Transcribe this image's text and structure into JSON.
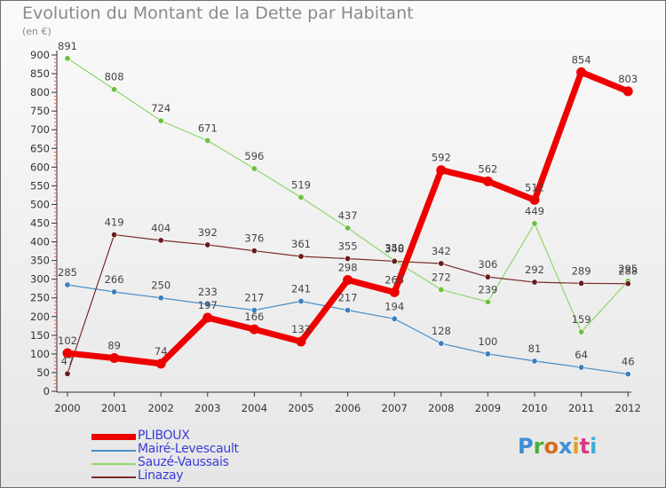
{
  "header": {
    "title": "Evolution du Montant de la Dette par Habitant",
    "unit": "(en €)"
  },
  "logo": {
    "text": "Proxiti",
    "colors": [
      "#3b8fd6",
      "#4caf3a",
      "#d86a1e",
      "#3b8fd6",
      "#e0a020",
      "#d83a7a",
      "#3bb0d6"
    ]
  },
  "chart_data": {
    "type": "line",
    "title": "Evolution du Montant de la Dette par Habitant",
    "ylabel": "(en €)",
    "xlabel": "",
    "ylim": [
      0,
      900
    ],
    "yticks": [
      0,
      50,
      100,
      150,
      200,
      250,
      300,
      350,
      400,
      450,
      500,
      550,
      600,
      650,
      700,
      750,
      800,
      850,
      900
    ],
    "categories": [
      "2000",
      "2001",
      "2002",
      "2003",
      "2004",
      "2005",
      "2006",
      "2007",
      "2008",
      "2009",
      "2010",
      "2011",
      "2012"
    ],
    "series": [
      {
        "name": "Mairé-Levescault",
        "color": "#4a8fc8",
        "marker": "#3a7fc0",
        "width": 1.2,
        "values": [
          285,
          266,
          250,
          233,
          217,
          241,
          217,
          194,
          128,
          100,
          81,
          64,
          46
        ]
      },
      {
        "name": "Sauzé-Vaussais",
        "color": "#8fd66a",
        "marker": "#6cc040",
        "width": 1.2,
        "values": [
          891,
          808,
          724,
          671,
          596,
          519,
          437,
          350,
          272,
          239,
          449,
          159,
          295
        ]
      },
      {
        "name": "Linazay",
        "color": "#7a2a2a",
        "marker": "#6a1a1a",
        "width": 1.2,
        "values": [
          47,
          419,
          404,
          392,
          376,
          361,
          355,
          348,
          342,
          306,
          292,
          289,
          288
        ]
      },
      {
        "name": "PLIBOUX",
        "color": "#ee0000",
        "marker": "#ee0000",
        "width": 7,
        "values": [
          102,
          89,
          74,
          197,
          166,
          133,
          298,
          265,
          592,
          562,
          512,
          854,
          803
        ]
      }
    ],
    "data_labels": [
      {
        "series": "PLIBOUX",
        "year": "2000",
        "text": "102"
      },
      {
        "series": "PLIBOUX",
        "year": "2001",
        "text": "89"
      },
      {
        "series": "PLIBOUX",
        "year": "2002",
        "text": "74"
      },
      {
        "series": "PLIBOUX",
        "year": "2003",
        "text": "197"
      },
      {
        "series": "PLIBOUX",
        "year": "2004",
        "text": "166"
      },
      {
        "series": "PLIBOUX",
        "year": "2005",
        "text": "133"
      },
      {
        "series": "PLIBOUX",
        "year": "2006",
        "text": "298"
      },
      {
        "series": "PLIBOUX",
        "year": "2007",
        "text": "265"
      },
      {
        "series": "PLIBOUX",
        "year": "2008",
        "text": "592"
      },
      {
        "series": "PLIBOUX",
        "year": "2009",
        "text": "562"
      },
      {
        "series": "PLIBOUX",
        "year": "2010",
        "text": "512"
      },
      {
        "series": "PLIBOUX",
        "year": "2011",
        "text": "854"
      },
      {
        "series": "PLIBOUX",
        "year": "2012",
        "text": "803"
      },
      {
        "series": "Mairé-Levescault",
        "year": "2000",
        "text": "285"
      },
      {
        "series": "Mairé-Levescault",
        "year": "2001",
        "text": "266"
      },
      {
        "series": "Mairé-Levescault",
        "year": "2002",
        "text": "250"
      },
      {
        "series": "Mairé-Levescault",
        "year": "2003",
        "text": "233"
      },
      {
        "series": "Mairé-Levescault",
        "year": "2004",
        "text": "217"
      },
      {
        "series": "Mairé-Levescault",
        "year": "2005",
        "text": "241"
      },
      {
        "series": "Mairé-Levescault",
        "year": "2006",
        "text": "217"
      },
      {
        "series": "Mairé-Levescault",
        "year": "2007",
        "text": "194"
      },
      {
        "series": "Mairé-Levescault",
        "year": "2008",
        "text": "128"
      },
      {
        "series": "Mairé-Levescault",
        "year": "2009",
        "text": "100"
      },
      {
        "series": "Mairé-Levescault",
        "year": "2010",
        "text": "81"
      },
      {
        "series": "Mairé-Levescault",
        "year": "2011",
        "text": "64"
      },
      {
        "series": "Mairé-Levescault",
        "year": "2012",
        "text": "46"
      },
      {
        "series": "Sauzé-Vaussais",
        "year": "2000",
        "text": "891"
      },
      {
        "series": "Sauzé-Vaussais",
        "year": "2001",
        "text": "808"
      },
      {
        "series": "Sauzé-Vaussais",
        "year": "2002",
        "text": "724"
      },
      {
        "series": "Sauzé-Vaussais",
        "year": "2003",
        "text": "671"
      },
      {
        "series": "Sauzé-Vaussais",
        "year": "2004",
        "text": "596"
      },
      {
        "series": "Sauzé-Vaussais",
        "year": "2005",
        "text": "519"
      },
      {
        "series": "Sauzé-Vaussais",
        "year": "2006",
        "text": "437"
      },
      {
        "series": "Sauzé-Vaussais",
        "year": "2007",
        "text": "350"
      },
      {
        "series": "Sauzé-Vaussais",
        "year": "2008",
        "text": "272"
      },
      {
        "series": "Sauzé-Vaussais",
        "year": "2009",
        "text": "239"
      },
      {
        "series": "Sauzé-Vaussais",
        "year": "2010",
        "text": "449"
      },
      {
        "series": "Sauzé-Vaussais",
        "year": "2011",
        "text": "159"
      },
      {
        "series": "Sauzé-Vaussais",
        "year": "2012",
        "text": "295"
      },
      {
        "series": "Linazay",
        "year": "2000",
        "text": "47"
      },
      {
        "series": "Linazay",
        "year": "2001",
        "text": "419"
      },
      {
        "series": "Linazay",
        "year": "2002",
        "text": "404"
      },
      {
        "series": "Linazay",
        "year": "2003",
        "text": "392"
      },
      {
        "series": "Linazay",
        "year": "2004",
        "text": "376"
      },
      {
        "series": "Linazay",
        "year": "2005",
        "text": "361"
      },
      {
        "series": "Linazay",
        "year": "2006",
        "text": "355"
      },
      {
        "series": "Linazay",
        "year": "2007",
        "text": "348"
      },
      {
        "series": "Linazay",
        "year": "2008",
        "text": "342"
      },
      {
        "series": "Linazay",
        "year": "2009",
        "text": "306"
      },
      {
        "series": "Linazay",
        "year": "2010",
        "text": "292"
      },
      {
        "series": "Linazay",
        "year": "2011",
        "text": "289"
      },
      {
        "series": "Linazay",
        "year": "2012",
        "text": "288"
      }
    ],
    "legend": [
      {
        "label": "PLIBOUX",
        "color": "#ee0000"
      },
      {
        "label": "Mairé-Levescault",
        "color": "#4a8fc8"
      },
      {
        "label": "Sauzé-Vaussais",
        "color": "#8fd66a"
      },
      {
        "label": "Linazay",
        "color": "#7a2a2a"
      }
    ],
    "legend_position": "bottom-left",
    "grid": false
  }
}
